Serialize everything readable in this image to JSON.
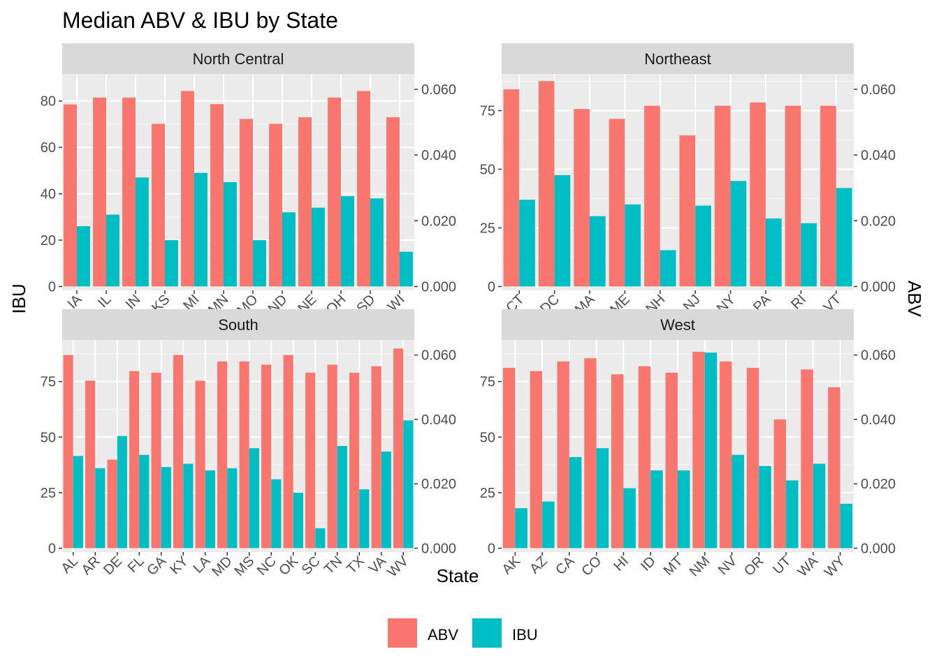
{
  "chart_data": {
    "type": "bar",
    "title": "Median ABV & IBU by State",
    "xlabel": "State",
    "ylabel": "IBU",
    "y2label": "ABV",
    "legend": {
      "position": "bottom",
      "items": [
        {
          "name": "ABV",
          "color": "#F8766D"
        },
        {
          "name": "IBU",
          "color": "#00BFC4"
        }
      ]
    },
    "grid": true,
    "facets": [
      {
        "name": "North Central",
        "categories": [
          "IA",
          "IL",
          "IN",
          "KS",
          "MI",
          "MN",
          "MO",
          "ND",
          "NE",
          "OH",
          "SD",
          "WI"
        ],
        "ylim": [
          0,
          90
        ],
        "yticks": [
          0,
          20,
          40,
          60,
          80
        ],
        "ytick_labels": [
          "0",
          "20",
          "40",
          "60",
          "80"
        ],
        "y2ticks": [
          0,
          0.02,
          0.04,
          0.06
        ],
        "y2tick_labels": [
          "0.000",
          "0.020",
          "0.040",
          "0.060"
        ],
        "series": [
          {
            "name": "ABV",
            "values": [
              0.0554,
              0.0575,
              0.0575,
              0.0495,
              0.0595,
              0.0555,
              0.051,
              0.0495,
              0.0515,
              0.0575,
              0.0595,
              0.0515
            ]
          },
          {
            "name": "IBU",
            "values": [
              26,
              31,
              47,
              20,
              49,
              45,
              20,
              32,
              34,
              39,
              38,
              15
            ]
          }
        ]
      },
      {
        "name": "Northeast",
        "categories": [
          "CT",
          "DC",
          "MA",
          "ME",
          "NH",
          "NJ",
          "NY",
          "PA",
          "RI",
          "VT"
        ],
        "ylim": [
          0,
          89
        ],
        "yticks": [
          0,
          25,
          50,
          75
        ],
        "ytick_labels": [
          "0",
          "25",
          "50",
          "75"
        ],
        "y2ticks": [
          0,
          0.02,
          0.04,
          0.06
        ],
        "y2tick_labels": [
          "0.000",
          "0.020",
          "0.040",
          "0.060"
        ],
        "series": [
          {
            "name": "ABV",
            "values": [
              0.06,
              0.0625,
              0.054,
              0.051,
              0.055,
              0.046,
              0.055,
              0.056,
              0.055,
              0.055
            ]
          },
          {
            "name": "IBU",
            "values": [
              37,
              47.5,
              30,
              35,
              15.5,
              34.5,
              45,
              29,
              27,
              42
            ]
          }
        ]
      },
      {
        "name": "South",
        "categories": [
          "AL",
          "AR",
          "DE",
          "FL",
          "GA",
          "KY",
          "LA",
          "MD",
          "MS",
          "NC",
          "OK",
          "SC",
          "TN",
          "TX",
          "VA",
          "WV"
        ],
        "ylim": [
          0,
          92
        ],
        "yticks": [
          0,
          25,
          50,
          75
        ],
        "ytick_labels": [
          "0",
          "25",
          "50",
          "75"
        ],
        "y2ticks": [
          0,
          0.02,
          0.04,
          0.06
        ],
        "y2tick_labels": [
          "0.000",
          "0.020",
          "0.040",
          "0.060"
        ],
        "series": [
          {
            "name": "ABV",
            "values": [
              0.06,
              0.052,
              0.0275,
              0.055,
              0.0545,
              0.06,
              0.052,
              0.058,
              0.058,
              0.057,
              0.06,
              0.0545,
              0.057,
              0.0545,
              0.0565,
              0.062
            ]
          },
          {
            "name": "IBU",
            "values": [
              41.5,
              36,
              50.5,
              42,
              36.5,
              38,
              35,
              36,
              45,
              31,
              25,
              9,
              46,
              26.5,
              43.5,
              57.5
            ]
          }
        ]
      },
      {
        "name": "West",
        "categories": [
          "AK",
          "AZ",
          "CA",
          "CO",
          "HI",
          "ID",
          "MT",
          "NM",
          "NV",
          "OR",
          "UT",
          "WA",
          "WY"
        ],
        "ylim": [
          0,
          92
        ],
        "yticks": [
          0,
          25,
          50,
          75
        ],
        "ytick_labels": [
          "0",
          "25",
          "50",
          "75"
        ],
        "y2ticks": [
          0,
          0.02,
          0.04,
          0.06
        ],
        "y2tick_labels": [
          "0.000",
          "0.020",
          "0.040",
          "0.060"
        ],
        "series": [
          {
            "name": "ABV",
            "values": [
              0.056,
              0.055,
              0.058,
              0.059,
              0.054,
              0.0565,
              0.0545,
              0.061,
              0.058,
              0.056,
              0.04,
              0.0555,
              0.05
            ]
          },
          {
            "name": "IBU",
            "values": [
              18,
              21,
              41,
              45,
              27,
              35,
              35,
              88,
              42,
              37,
              30.5,
              38,
              20
            ]
          }
        ]
      }
    ]
  }
}
